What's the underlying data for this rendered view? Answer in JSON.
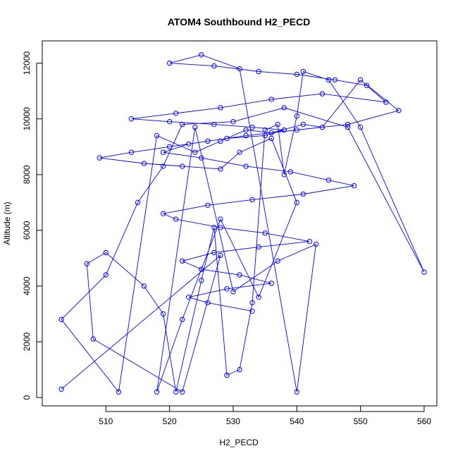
{
  "chart_data": {
    "type": "scatter",
    "title": "ATOM4 Southbound H2_PECD",
    "xlabel": "H2_PECD",
    "ylabel": "Altitude (m)",
    "xlim": [
      500,
      562
    ],
    "ylim": [
      -300,
      12800
    ],
    "x_ticks": [
      "510",
      "520",
      "530",
      "540",
      "550",
      "560"
    ],
    "y_ticks": [
      "0",
      "2000",
      "4000",
      "6000",
      "8000",
      "10000",
      "12000"
    ],
    "grid": false,
    "connected": true,
    "series_color": "#0000ff",
    "marker": "open-circle",
    "series": [
      {
        "x": [
          503,
          528,
          522,
          508,
          507,
          510,
          516,
          519,
          521,
          525,
          527,
          529,
          531,
          533,
          535,
          537,
          538,
          540,
          541,
          545,
          550,
          560,
          548,
          538,
          530,
          522,
          519,
          515,
          510,
          503,
          512,
          518,
          524,
          528,
          532,
          536,
          541,
          544,
          550,
          556,
          548,
          540,
          532,
          526,
          520,
          514,
          509,
          516,
          522,
          528,
          531,
          536,
          540,
          534,
          528,
          522,
          518,
          524,
          530,
          537,
          543,
          540,
          531,
          525,
          520,
          527,
          534,
          540,
          546,
          551,
          554,
          544,
          536,
          528,
          521,
          514,
          520,
          527,
          533,
          538,
          535,
          529,
          523,
          519,
          525,
          532,
          539,
          545,
          549,
          541,
          533,
          526,
          519,
          521,
          528,
          535,
          542,
          534,
          527,
          522,
          525,
          531,
          536,
          529,
          523,
          526,
          533
        ],
        "y": [
          300,
          5100,
          200,
          2100,
          4800,
          5200,
          4000,
          3000,
          200,
          4200,
          6100,
          800,
          1000,
          3400,
          9600,
          9800,
          8000,
          10100,
          11700,
          11400,
          9700,
          4500,
          9700,
          10400,
          9900,
          9800,
          8300,
          7000,
          4400,
          2800,
          200,
          9400,
          8800,
          9200,
          9600,
          9500,
          9800,
          9700,
          11400,
          10300,
          9800,
          9600,
          9400,
          9200,
          9000,
          8800,
          8600,
          8400,
          8300,
          8200,
          8800,
          9300,
          7000,
          3600,
          6400,
          2800,
          200,
          9700,
          3800,
          4900,
          5500,
          200,
          11800,
          12300,
          12000,
          11900,
          11700,
          11600,
          11400,
          11200,
          10600,
          10900,
          10700,
          10400,
          10200,
          10000,
          9900,
          9800,
          9700,
          9600,
          9400,
          9300,
          9100,
          8800,
          8600,
          8300,
          8100,
          7800,
          7600,
          7300,
          7100,
          6900,
          6600,
          6400,
          6100,
          5900,
          5600,
          5400,
          5200,
          4900,
          4600,
          4400,
          4100,
          3900,
          3600,
          3400,
          3100
        ]
      }
    ]
  }
}
